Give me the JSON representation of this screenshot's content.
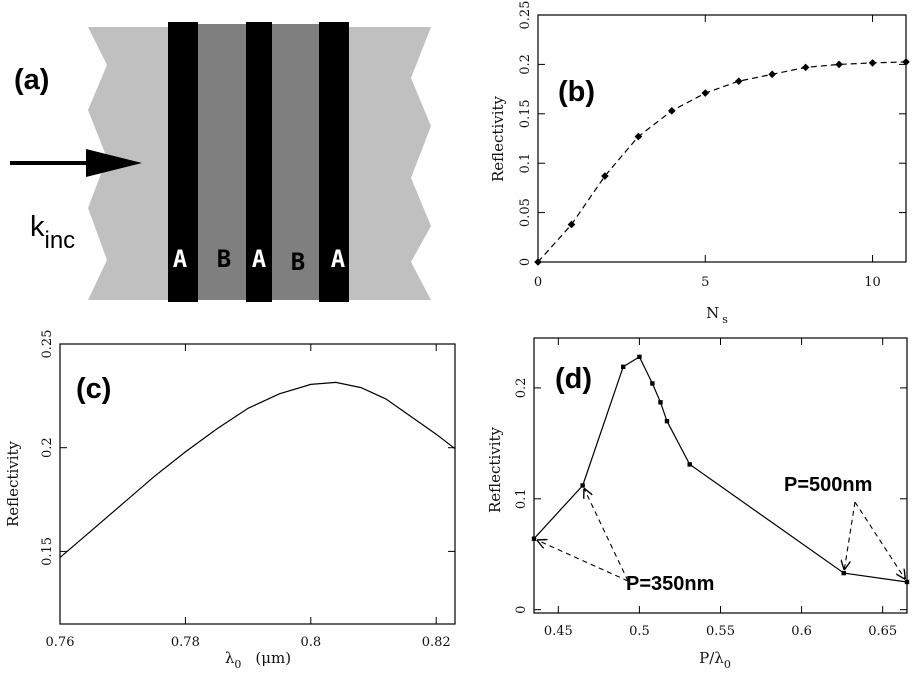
{
  "panel_a": {
    "label": "(a)",
    "wave_label_main": "k",
    "wave_label_sub": "inc",
    "layers": [
      "A",
      "B",
      "A",
      "B",
      "A"
    ]
  },
  "chart_data": [
    {
      "id": "b",
      "type": "line",
      "panel_label": "(b)",
      "xlabel": "N",
      "xlabel_sub": "s",
      "ylabel": "Reflectivity",
      "xlim": [
        0,
        11
      ],
      "ylim": [
        0,
        0.25
      ],
      "xticks": [
        0,
        5,
        10
      ],
      "yticks": [
        0,
        0.05,
        0.1,
        0.15,
        0.2,
        0.25
      ],
      "ytick_labels": [
        "0",
        "0.05",
        "0.1",
        "0.15",
        "0.2",
        "0.25"
      ],
      "line_style": "dashed",
      "marker": "diamond",
      "series": [
        {
          "x": [
            0,
            1,
            2,
            3,
            4,
            5,
            6,
            7,
            8,
            9,
            10,
            11
          ],
          "y": [
            0.0,
            0.038,
            0.087,
            0.127,
            0.153,
            0.171,
            0.183,
            0.19,
            0.197,
            0.2,
            0.2015,
            0.2025
          ]
        }
      ]
    },
    {
      "id": "c",
      "type": "line",
      "panel_label": "(c)",
      "xlabel": "λ",
      "xlabel_sub": "0",
      "xlabel_unit": "(μm)",
      "ylabel": "Reflectivity",
      "xlim": [
        0.76,
        0.823
      ],
      "ylim": [
        0.115,
        0.25
      ],
      "xticks": [
        0.76,
        0.78,
        0.8,
        0.82
      ],
      "xtick_labels": [
        "0.76",
        "0.78",
        "0.8",
        "0.82"
      ],
      "yticks": [
        0.15,
        0.2,
        0.25
      ],
      "ytick_labels": [
        "0.15",
        "0.2",
        "0.25"
      ],
      "series": [
        {
          "x": [
            0.76,
            0.765,
            0.77,
            0.775,
            0.78,
            0.785,
            0.79,
            0.795,
            0.8,
            0.804,
            0.808,
            0.812,
            0.816,
            0.82,
            0.823
          ],
          "y": [
            0.147,
            0.16,
            0.173,
            0.186,
            0.198,
            0.209,
            0.219,
            0.226,
            0.2305,
            0.2315,
            0.229,
            0.2235,
            0.215,
            0.2065,
            0.1995
          ]
        }
      ]
    },
    {
      "id": "d",
      "type": "line",
      "panel_label": "(d)",
      "xlabel": "P/λ",
      "xlabel_sub": "0",
      "ylabel": "Reflectivity",
      "xlim": [
        0.435,
        0.665
      ],
      "ylim": [
        -0.003,
        0.245
      ],
      "xticks": [
        0.45,
        0.5,
        0.55,
        0.6,
        0.65
      ],
      "xtick_labels": [
        "0.45",
        "0.5",
        "0.55",
        "0.6",
        "0.65"
      ],
      "yticks": [
        0,
        0.1,
        0.2
      ],
      "ytick_labels": [
        "0",
        "0.1",
        "0.2"
      ],
      "marker": "square",
      "series": [
        {
          "x": [
            0.435,
            0.465,
            0.49,
            0.5,
            0.508,
            0.513,
            0.517,
            0.531,
            0.626,
            0.665
          ],
          "y": [
            0.064,
            0.112,
            0.219,
            0.228,
            0.204,
            0.187,
            0.17,
            0.131,
            0.033,
            0.025
          ]
        }
      ],
      "annotations": [
        {
          "text": "P=350nm",
          "points_to_x": [
            0.435,
            0.465
          ]
        },
        {
          "text": "P=500nm",
          "points_to_x": [
            0.626,
            0.665
          ]
        }
      ]
    }
  ]
}
